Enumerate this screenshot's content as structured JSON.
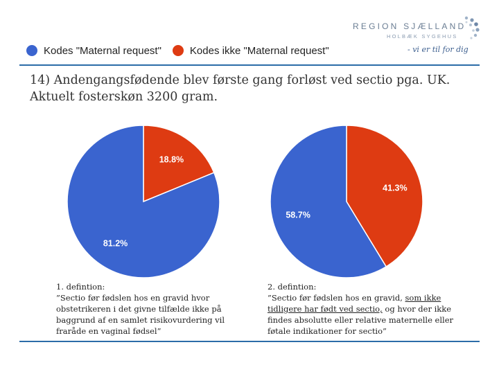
{
  "logo": {
    "name": "REGION SJÆLLAND",
    "sub": "HOLBÆK SYGEHUS",
    "slogan": "- vi er til for dig"
  },
  "legend": {
    "items": [
      {
        "label": "Kodes \"Maternal request\"",
        "color": "#3a64cf"
      },
      {
        "label": "Kodes ikke \"Maternal request\"",
        "color": "#de3b12"
      }
    ]
  },
  "question": {
    "line1": "14) Andengangsfødende blev første gang forløst ved sectio pga. UK.",
    "line2": "Aktuelt fosterskøn 3200 gram."
  },
  "chart_data": [
    {
      "type": "pie",
      "title": "",
      "categories": [
        "Kodes \"Maternal request\"",
        "Kodes ikke \"Maternal request\""
      ],
      "values": [
        81.2,
        18.8
      ],
      "labels": [
        "81.2%",
        "18.8%"
      ],
      "colors": [
        "#3a64cf",
        "#de3b12"
      ]
    },
    {
      "type": "pie",
      "title": "",
      "categories": [
        "Kodes \"Maternal request\"",
        "Kodes ikke \"Maternal request\""
      ],
      "values": [
        58.7,
        41.3
      ],
      "labels": [
        "58.7%",
        "41.3%"
      ],
      "colors": [
        "#3a64cf",
        "#de3b12"
      ]
    }
  ],
  "definitions": {
    "left": {
      "heading": "1. defintion:",
      "lines": [
        "”Sectio før fødslen hos en gravid hvor",
        "obstetrikeren i det givne tilfælde ikke på",
        "baggrund af en samlet risikovurdering vil",
        "fraråde en vaginal fødsel”"
      ]
    },
    "right": {
      "heading": "2. defintion:",
      "line1_pre": "”Sectio før fødslen hos en gravid, ",
      "line1_u": "som ikke",
      "line2_u": "tidligere har født ved sectio,",
      "line2_post": " og hvor der ikke",
      "line3": "findes absolutte eller relative maternelle eller",
      "line4": "føtale indikationer for sectio”"
    }
  }
}
